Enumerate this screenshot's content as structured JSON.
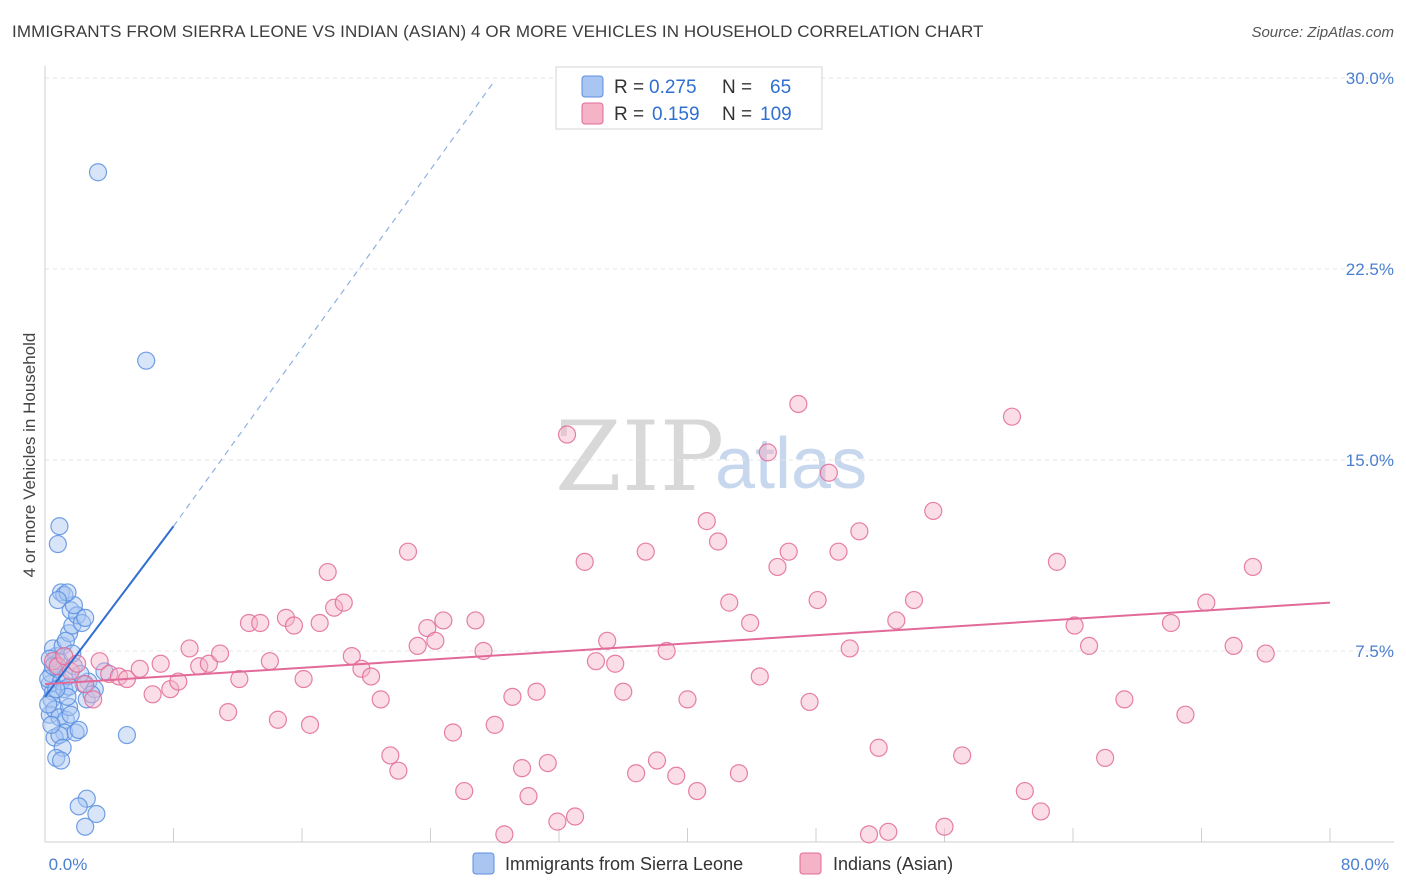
{
  "header": {
    "title": "IMMIGRANTS FROM SIERRA LEONE VS INDIAN (ASIAN) 4 OR MORE VEHICLES IN HOUSEHOLD CORRELATION CHART",
    "source": "Source: ZipAtlas.com"
  },
  "watermark": {
    "zip": "ZIP",
    "atlas": "atlas"
  },
  "legend": {
    "r_label": "R =",
    "n_label": "N =",
    "rows": [
      {
        "r": "0.275",
        "n": "65",
        "color": "#a9c6f2"
      },
      {
        "r": "0.159",
        "n": "109",
        "color": "#f5b3c8"
      }
    ]
  },
  "chart_data": {
    "type": "scatter",
    "title": "IMMIGRANTS FROM SIERRA LEONE VS INDIAN (ASIAN) 4 OR MORE VEHICLES IN HOUSEHOLD CORRELATION CHART",
    "xlabel": "",
    "ylabel": "4 or more Vehicles in Household",
    "xlim": [
      0,
      80
    ],
    "ylim": [
      0,
      30
    ],
    "x_tick_labels": [
      "0.0%",
      "80.0%"
    ],
    "y_ticks": [
      7.5,
      15.0,
      22.5,
      30.0
    ],
    "y_tick_labels": [
      "7.5%",
      "15.0%",
      "22.5%",
      "30.0%"
    ],
    "grid": true,
    "legend_position": "top-center",
    "series": [
      {
        "name": "Immigrants from Sierra Leone",
        "color": "#5b8fe0",
        "fill": "#a9c6f2",
        "R": 0.275,
        "N": 65,
        "trend": {
          "x": [
            0.0,
            8.0
          ],
          "y": [
            5.7,
            12.4
          ],
          "dashed_to": [
            28.0,
            29.9
          ]
        },
        "points": [
          [
            0.3,
            6.2
          ],
          [
            0.5,
            5.9
          ],
          [
            0.4,
            6.6
          ],
          [
            0.6,
            7.0
          ],
          [
            0.2,
            6.4
          ],
          [
            0.8,
            6.8
          ],
          [
            1.0,
            6.3
          ],
          [
            0.7,
            7.3
          ],
          [
            0.5,
            7.6
          ],
          [
            0.9,
            7.1
          ],
          [
            1.2,
            6.0
          ],
          [
            1.4,
            6.5
          ],
          [
            1.1,
            7.7
          ],
          [
            1.5,
            8.2
          ],
          [
            1.3,
            7.9
          ],
          [
            1.7,
            8.5
          ],
          [
            1.6,
            9.1
          ],
          [
            2.0,
            8.9
          ],
          [
            1.8,
            9.3
          ],
          [
            2.3,
            8.6
          ],
          [
            2.5,
            8.8
          ],
          [
            1.0,
            9.8
          ],
          [
            1.2,
            9.7
          ],
          [
            1.4,
            9.8
          ],
          [
            0.8,
            9.5
          ],
          [
            0.4,
            5.6
          ],
          [
            0.3,
            5.0
          ],
          [
            0.6,
            5.2
          ],
          [
            0.9,
            4.9
          ],
          [
            1.3,
            4.8
          ],
          [
            1.5,
            5.3
          ],
          [
            1.6,
            5.0
          ],
          [
            1.2,
            4.3
          ],
          [
            1.9,
            4.3
          ],
          [
            2.1,
            4.4
          ],
          [
            0.6,
            4.1
          ],
          [
            0.9,
            4.2
          ],
          [
            1.1,
            3.7
          ],
          [
            0.7,
            3.3
          ],
          [
            1.0,
            3.2
          ],
          [
            0.4,
            4.6
          ],
          [
            2.7,
            6.3
          ],
          [
            2.4,
            6.2
          ],
          [
            2.6,
            5.6
          ],
          [
            3.1,
            6.0
          ],
          [
            3.7,
            6.7
          ],
          [
            0.9,
            12.4
          ],
          [
            0.8,
            11.7
          ],
          [
            3.3,
            26.3
          ],
          [
            6.3,
            18.9
          ],
          [
            5.1,
            4.2
          ],
          [
            2.6,
            1.7
          ],
          [
            2.1,
            1.4
          ],
          [
            3.2,
            1.1
          ],
          [
            2.5,
            0.6
          ],
          [
            1.5,
            6.1
          ],
          [
            1.8,
            6.9
          ],
          [
            2.2,
            6.6
          ],
          [
            0.3,
            7.2
          ],
          [
            0.5,
            6.9
          ],
          [
            1.4,
            5.7
          ],
          [
            2.9,
            5.8
          ],
          [
            0.2,
            5.4
          ],
          [
            0.7,
            6.0
          ],
          [
            1.7,
            7.4
          ]
        ]
      },
      {
        "name": "Indians (Asian)",
        "color": "#e26a98",
        "fill": "#f5b3c8",
        "R": 0.159,
        "N": 109,
        "trend": {
          "x": [
            0.0,
            80.0
          ],
          "y": [
            6.2,
            9.4
          ]
        },
        "points": [
          [
            0.5,
            7.1
          ],
          [
            0.8,
            6.9
          ],
          [
            1.2,
            7.3
          ],
          [
            1.6,
            6.7
          ],
          [
            2.0,
            7.0
          ],
          [
            2.5,
            6.2
          ],
          [
            3.0,
            5.6
          ],
          [
            3.4,
            7.1
          ],
          [
            4.0,
            6.6
          ],
          [
            4.6,
            6.5
          ],
          [
            5.1,
            6.4
          ],
          [
            5.9,
            6.8
          ],
          [
            6.7,
            5.8
          ],
          [
            7.2,
            7.0
          ],
          [
            7.8,
            6.0
          ],
          [
            8.3,
            6.3
          ],
          [
            9.0,
            7.6
          ],
          [
            9.6,
            6.9
          ],
          [
            10.2,
            7.0
          ],
          [
            10.9,
            7.4
          ],
          [
            11.4,
            5.1
          ],
          [
            12.1,
            6.4
          ],
          [
            12.7,
            8.6
          ],
          [
            13.4,
            8.6
          ],
          [
            14.0,
            7.1
          ],
          [
            14.5,
            4.8
          ],
          [
            15.0,
            8.8
          ],
          [
            15.5,
            8.5
          ],
          [
            16.1,
            6.4
          ],
          [
            16.5,
            4.6
          ],
          [
            17.1,
            8.6
          ],
          [
            17.6,
            10.6
          ],
          [
            18.0,
            9.2
          ],
          [
            18.6,
            9.4
          ],
          [
            19.1,
            7.3
          ],
          [
            19.7,
            6.8
          ],
          [
            20.3,
            6.5
          ],
          [
            20.9,
            5.6
          ],
          [
            21.5,
            3.4
          ],
          [
            22.0,
            2.8
          ],
          [
            22.6,
            11.4
          ],
          [
            23.2,
            7.7
          ],
          [
            23.8,
            8.4
          ],
          [
            24.3,
            7.9
          ],
          [
            24.8,
            8.7
          ],
          [
            25.4,
            4.3
          ],
          [
            26.1,
            2.0
          ],
          [
            26.8,
            8.7
          ],
          [
            27.3,
            7.5
          ],
          [
            28.0,
            4.6
          ],
          [
            28.6,
            0.3
          ],
          [
            29.1,
            5.7
          ],
          [
            29.7,
            2.9
          ],
          [
            30.1,
            1.8
          ],
          [
            30.6,
            5.9
          ],
          [
            31.3,
            3.1
          ],
          [
            31.9,
            0.8
          ],
          [
            32.5,
            16.0
          ],
          [
            33.0,
            1.0
          ],
          [
            33.6,
            11.0
          ],
          [
            34.3,
            7.1
          ],
          [
            35.0,
            7.9
          ],
          [
            35.5,
            7.0
          ],
          [
            36.0,
            5.9
          ],
          [
            36.8,
            2.7
          ],
          [
            37.4,
            11.4
          ],
          [
            38.1,
            3.2
          ],
          [
            38.7,
            7.5
          ],
          [
            39.3,
            2.6
          ],
          [
            40.0,
            5.6
          ],
          [
            40.6,
            2.0
          ],
          [
            41.2,
            12.6
          ],
          [
            41.9,
            11.8
          ],
          [
            42.6,
            9.4
          ],
          [
            43.2,
            2.7
          ],
          [
            43.9,
            8.6
          ],
          [
            44.5,
            6.5
          ],
          [
            45.0,
            15.3
          ],
          [
            45.6,
            10.8
          ],
          [
            46.3,
            11.4
          ],
          [
            46.9,
            17.2
          ],
          [
            47.6,
            5.5
          ],
          [
            48.1,
            9.5
          ],
          [
            48.8,
            14.5
          ],
          [
            49.4,
            11.4
          ],
          [
            50.1,
            7.6
          ],
          [
            50.7,
            12.2
          ],
          [
            51.3,
            0.3
          ],
          [
            51.9,
            3.7
          ],
          [
            52.5,
            0.4
          ],
          [
            53.0,
            8.7
          ],
          [
            54.1,
            9.5
          ],
          [
            55.3,
            13.0
          ],
          [
            56.0,
            0.6
          ],
          [
            57.1,
            3.4
          ],
          [
            60.2,
            16.7
          ],
          [
            61.0,
            2.0
          ],
          [
            62.0,
            1.2
          ],
          [
            63.0,
            11.0
          ],
          [
            64.1,
            8.5
          ],
          [
            65.0,
            7.7
          ],
          [
            66.0,
            3.3
          ],
          [
            67.2,
            5.6
          ],
          [
            70.1,
            8.6
          ],
          [
            71.0,
            5.0
          ],
          [
            72.3,
            9.4
          ],
          [
            74.0,
            7.7
          ],
          [
            75.2,
            10.8
          ],
          [
            76.0,
            7.4
          ]
        ]
      }
    ]
  },
  "bottom_legend": [
    {
      "label": "Immigrants from Sierra Leone",
      "color": "#a9c6f2",
      "stroke": "#5b8fe0"
    },
    {
      "label": "Indians (Asian)",
      "color": "#f5b3c8",
      "stroke": "#e26a98"
    }
  ]
}
